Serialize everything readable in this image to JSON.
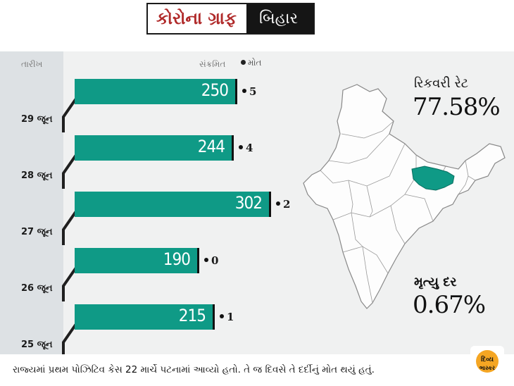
{
  "title": {
    "left": "કોરોના ગ્રાફ",
    "right": "બિહાર"
  },
  "header": {
    "date_label": "તારીખ",
    "infected_label": "સંક્રમિત",
    "death_label": "મોત"
  },
  "chart_data": {
    "type": "bar",
    "orientation": "horizontal",
    "categories": [
      "29 જૂન",
      "28 જૂન",
      "27 જૂન",
      "26 જૂન",
      "25 જૂન"
    ],
    "series": [
      {
        "name": "સંક્રમિત",
        "values": [
          250,
          244,
          302,
          190,
          215
        ]
      },
      {
        "name": "મોત",
        "values": [
          5,
          4,
          2,
          0,
          1
        ]
      }
    ],
    "xlim": [
      0,
      340
    ]
  },
  "stats": {
    "recovery_label": "રિકવરી રેટ",
    "recovery_value": "77.58%",
    "mortality_label": "મૃત્યુ દર",
    "mortality_value": "0.67%"
  },
  "map": {
    "highlight_color": "#0f9a86",
    "highlighted_state": "બિહાર"
  },
  "footer": {
    "text": "રાજ્યમાં પ્રથમ પોઝિટિવ કેસ 22 માર્ચે પટનામાં આવ્યો હતો. તે જ દિવસે તે દર્દીનું મોત થયું હતું."
  },
  "logo": {
    "line1": "દિવ્ય",
    "line2": "ભાસ્કર",
    "color": "#f5a623"
  },
  "colors": {
    "bar": "#0f9a86",
    "title_red": "#b02a2a",
    "title_dark": "#151515"
  }
}
